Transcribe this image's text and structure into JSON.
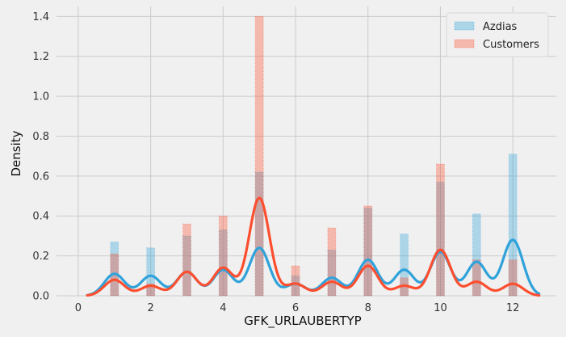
{
  "chart_data": {
    "type": "bar",
    "xlabel": "GFK_URLAUBERTYP",
    "ylabel": "Density",
    "xlim": [
      -0.6,
      13.2
    ],
    "ylim": [
      0,
      1.45
    ],
    "xticks": [
      0,
      2,
      4,
      6,
      8,
      10,
      12
    ],
    "yticks": [
      0.0,
      0.2,
      0.4,
      0.6,
      0.8,
      1.0,
      1.2,
      1.4
    ],
    "xtick_labels": [
      "0",
      "2",
      "4",
      "6",
      "8",
      "10",
      "12"
    ],
    "ytick_labels": [
      "0.0",
      "0.2",
      "0.4",
      "0.6",
      "0.8",
      "1.0",
      "1.2",
      "1.4"
    ],
    "grid": true,
    "legend_position": "top-right",
    "categories": [
      1,
      2,
      3,
      4,
      5,
      6,
      7,
      8,
      9,
      10,
      11,
      12
    ],
    "series": [
      {
        "name": "Azdias",
        "color": "#30a2da",
        "values": [
          0.27,
          0.24,
          0.3,
          0.33,
          0.62,
          0.1,
          0.23,
          0.44,
          0.31,
          0.57,
          0.41,
          0.71
        ],
        "kde_peaks": [
          0.11,
          0.1,
          0.12,
          0.13,
          0.24,
          0.06,
          0.09,
          0.18,
          0.13,
          0.22,
          0.17,
          0.28
        ]
      },
      {
        "name": "Customers",
        "color": "#fc4f30",
        "values": [
          0.21,
          0.06,
          0.36,
          0.4,
          1.4,
          0.15,
          0.34,
          0.45,
          0.09,
          0.66,
          0.18,
          0.18
        ],
        "kde_peaks": [
          0.08,
          0.05,
          0.12,
          0.14,
          0.49,
          0.06,
          0.07,
          0.15,
          0.05,
          0.23,
          0.07,
          0.06
        ]
      }
    ]
  },
  "legend": {
    "items": [
      "Azdias",
      "Customers"
    ]
  }
}
